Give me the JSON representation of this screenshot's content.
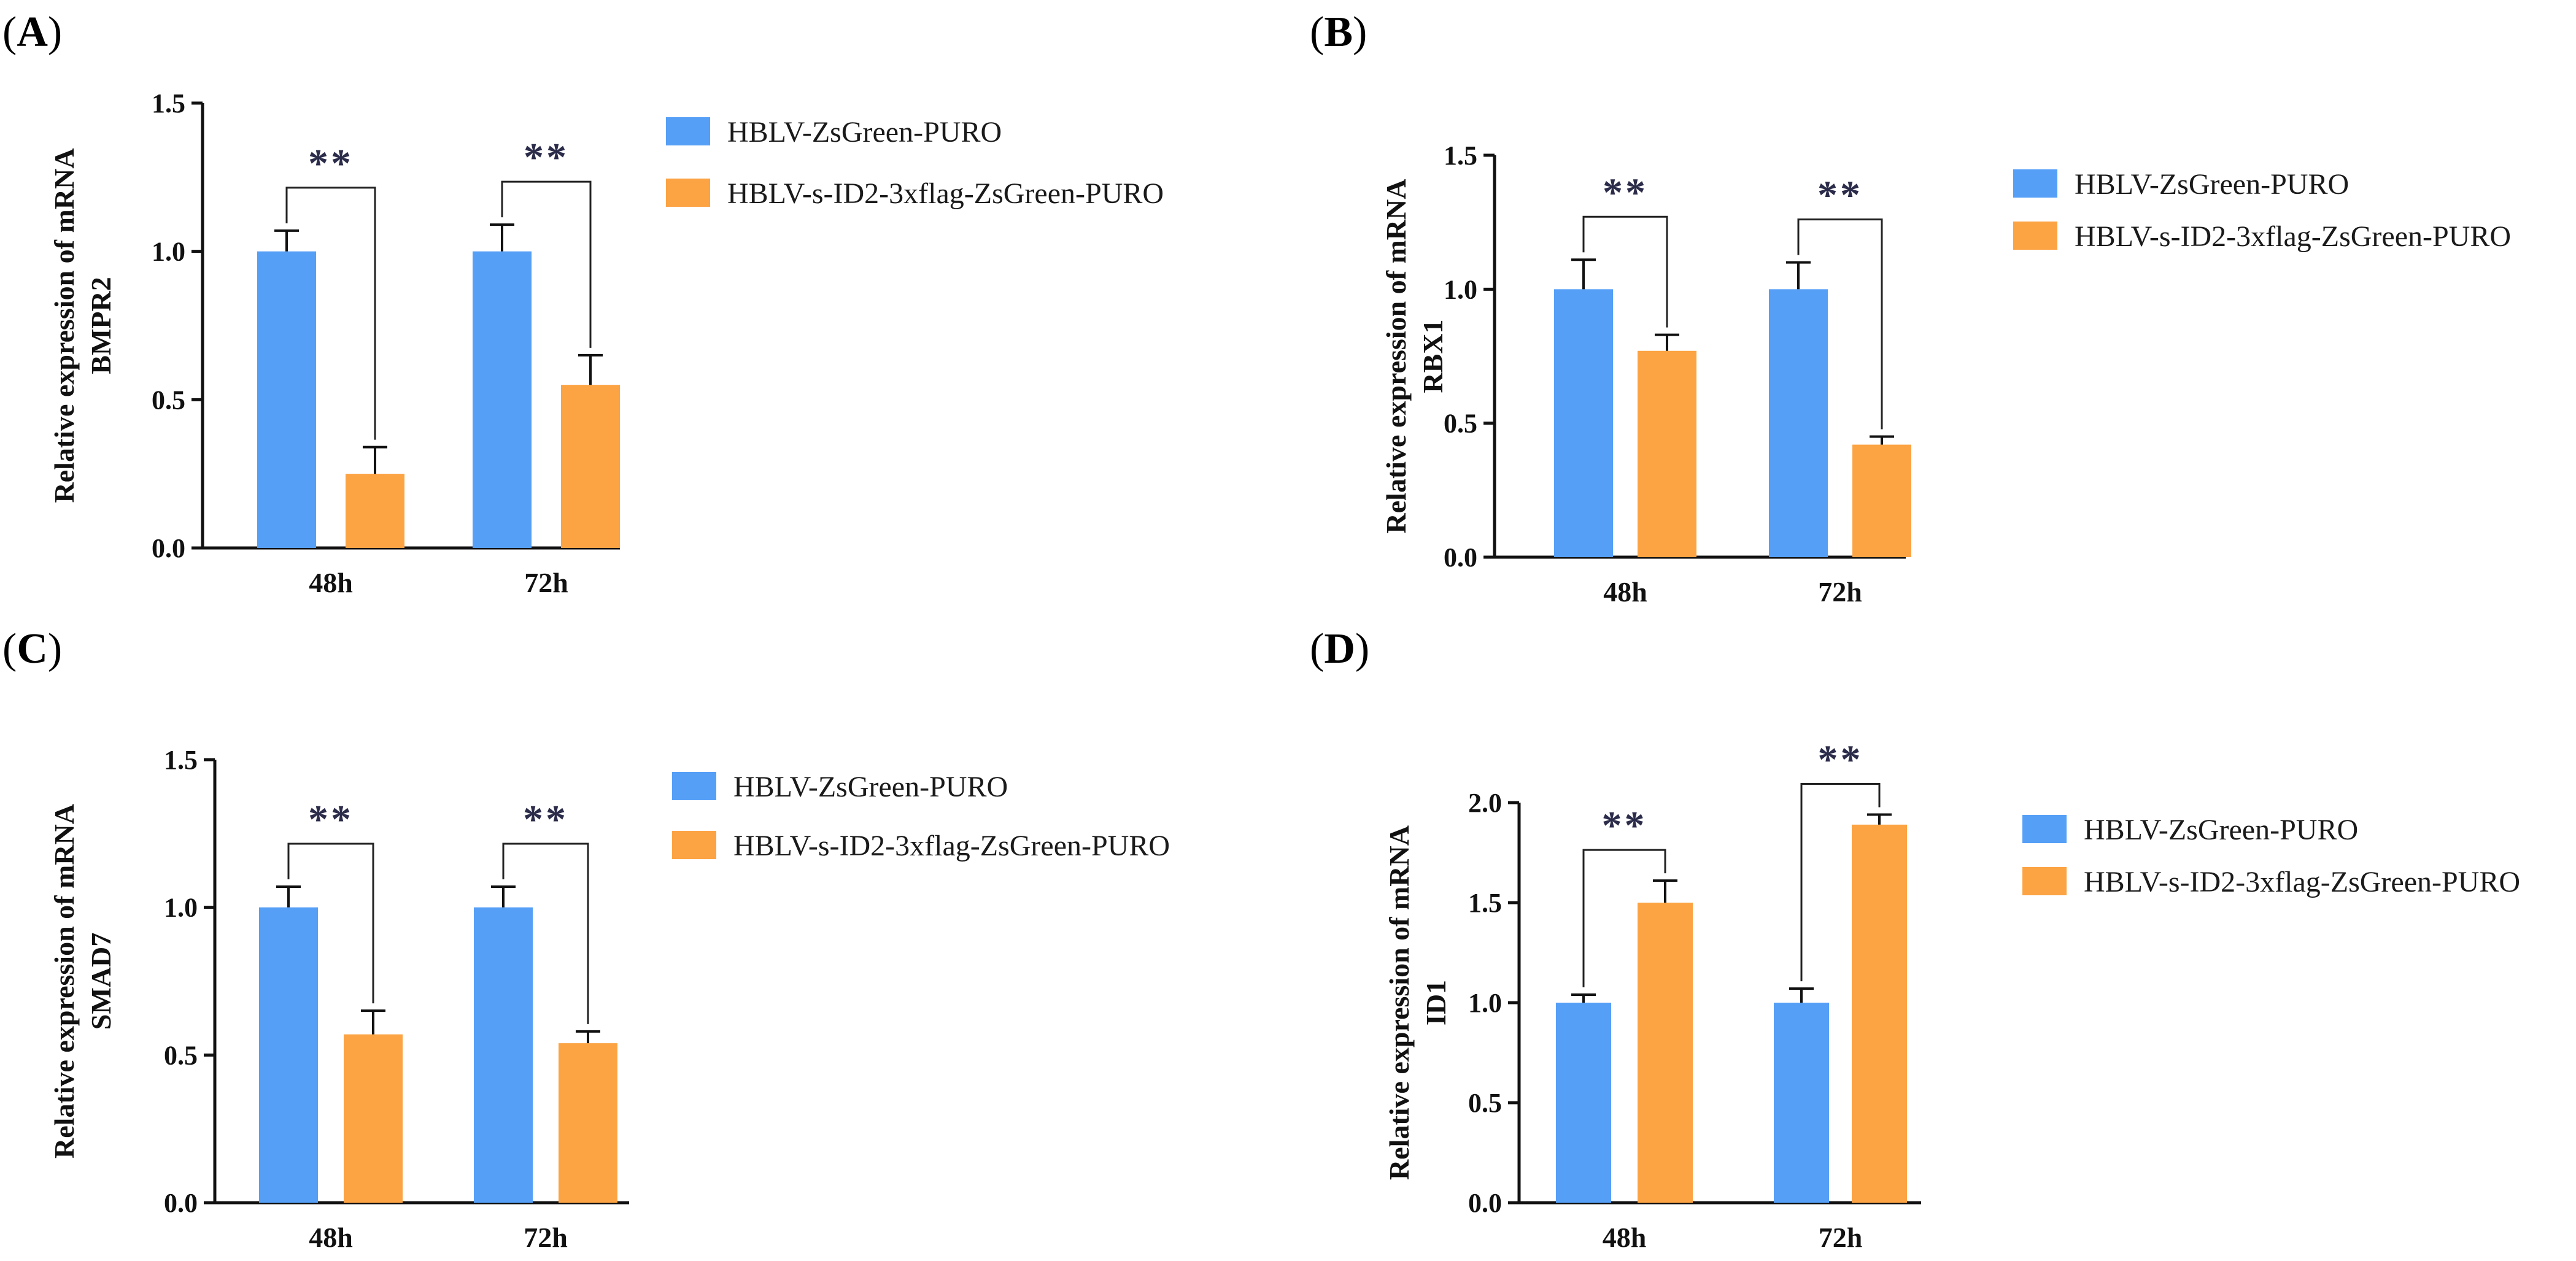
{
  "colors": {
    "control": "#559ff7",
    "overexpression": "#fca343",
    "axis": "#111111",
    "bracket": "#222222",
    "stars": "#2b2b4a"
  },
  "chart_data": [
    {
      "panel": "A",
      "type": "bar",
      "ylabel": [
        "Relative expression of mRNA",
        "BMPR2"
      ],
      "categories": [
        "48h",
        "72h"
      ],
      "ylim": [
        0,
        1.5
      ],
      "yticks": [
        "0.0",
        "0.5",
        "1.0",
        "1.5"
      ],
      "series": [
        {
          "name": "HBLV-ZsGreen-PURO",
          "values": [
            1.0,
            1.0
          ],
          "errors": [
            0.07,
            0.09
          ]
        },
        {
          "name": "HBLV-s-ID2-3xflag-ZsGreen-PURO",
          "values": [
            0.25,
            0.55
          ],
          "errors": [
            0.09,
            0.1
          ]
        }
      ],
      "significance": [
        "**",
        "**"
      ],
      "legend": "right"
    },
    {
      "panel": "B",
      "type": "bar",
      "ylabel": [
        "Relative expression of mRNA",
        "RBX1"
      ],
      "categories": [
        "48h",
        "72h"
      ],
      "ylim": [
        0,
        1.5
      ],
      "yticks": [
        "0.0",
        "0.5",
        "1.0",
        "1.5"
      ],
      "series": [
        {
          "name": "HBLV-ZsGreen-PURO",
          "values": [
            1.0,
            1.0
          ],
          "errors": [
            0.11,
            0.1
          ]
        },
        {
          "name": "HBLV-s-ID2-3xflag-ZsGreen-PURO",
          "values": [
            0.77,
            0.42
          ],
          "errors": [
            0.06,
            0.03
          ]
        }
      ],
      "significance": [
        "**",
        "**"
      ],
      "legend": "right"
    },
    {
      "panel": "C",
      "type": "bar",
      "ylabel": [
        "Relative expression of mRNA",
        "SMAD7"
      ],
      "categories": [
        "48h",
        "72h"
      ],
      "ylim": [
        0,
        1.5
      ],
      "yticks": [
        "0.0",
        "0.5",
        "1.0",
        "1.5"
      ],
      "series": [
        {
          "name": "HBLV-ZsGreen-PURO",
          "values": [
            1.0,
            1.0
          ],
          "errors": [
            0.07,
            0.07
          ]
        },
        {
          "name": "HBLV-s-ID2-3xflag-ZsGreen-PURO",
          "values": [
            0.57,
            0.54
          ],
          "errors": [
            0.08,
            0.04
          ]
        }
      ],
      "significance": [
        "**",
        "**"
      ],
      "legend": "right"
    },
    {
      "panel": "D",
      "type": "bar",
      "ylabel": [
        "Relative expression of mRNA",
        "ID1"
      ],
      "categories": [
        "48h",
        "72h"
      ],
      "ylim": [
        0,
        2.0
      ],
      "yticks": [
        "0.0",
        "0.5",
        "1.0",
        "1.5",
        "2.0"
      ],
      "series": [
        {
          "name": "HBLV-ZsGreen-PURO",
          "values": [
            1.0,
            1.0
          ],
          "errors": [
            0.04,
            0.07
          ]
        },
        {
          "name": "HBLV-s-ID2-3xflag-ZsGreen-PURO",
          "values": [
            1.5,
            1.89
          ],
          "errors": [
            0.11,
            0.05
          ]
        }
      ],
      "significance": [
        "**",
        "**"
      ],
      "legend": "right"
    }
  ]
}
